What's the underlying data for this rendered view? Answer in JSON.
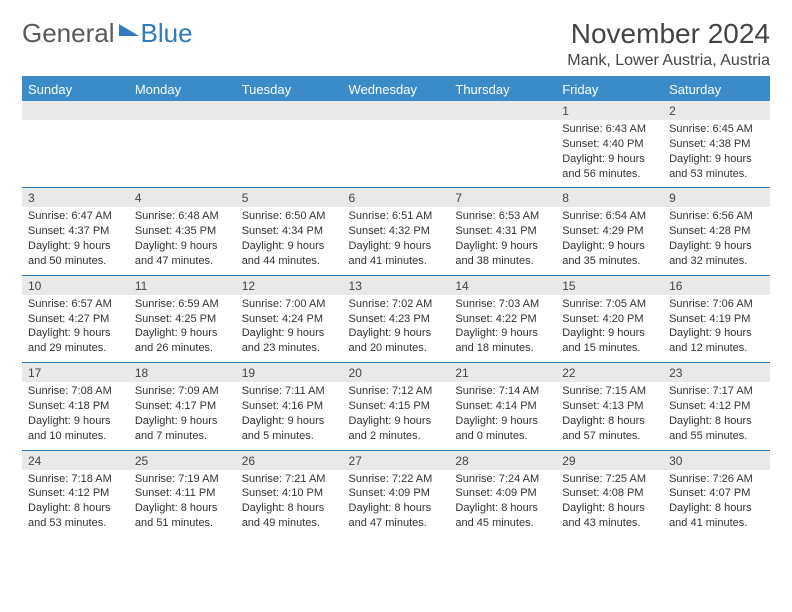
{
  "logo": {
    "part1": "General",
    "part2": "Blue"
  },
  "title": "November 2024",
  "location": "Mank, Lower Austria, Austria",
  "colors": {
    "header_bg": "#3b8bc9",
    "header_text": "#ffffff",
    "date_row_bg": "#e9e9e9",
    "divider": "#2f7bbf",
    "body_text": "#333333"
  },
  "typography": {
    "title_fontsize": 28,
    "location_fontsize": 16,
    "dayhead_fontsize": 13,
    "cell_fontsize": 11
  },
  "days": [
    "Sunday",
    "Monday",
    "Tuesday",
    "Wednesday",
    "Thursday",
    "Friday",
    "Saturday"
  ],
  "weeks": [
    [
      null,
      null,
      null,
      null,
      null,
      {
        "n": "1",
        "sr": "Sunrise: 6:43 AM",
        "ss": "Sunset: 4:40 PM",
        "dl1": "Daylight: 9 hours",
        "dl2": "and 56 minutes."
      },
      {
        "n": "2",
        "sr": "Sunrise: 6:45 AM",
        "ss": "Sunset: 4:38 PM",
        "dl1": "Daylight: 9 hours",
        "dl2": "and 53 minutes."
      }
    ],
    [
      {
        "n": "3",
        "sr": "Sunrise: 6:47 AM",
        "ss": "Sunset: 4:37 PM",
        "dl1": "Daylight: 9 hours",
        "dl2": "and 50 minutes."
      },
      {
        "n": "4",
        "sr": "Sunrise: 6:48 AM",
        "ss": "Sunset: 4:35 PM",
        "dl1": "Daylight: 9 hours",
        "dl2": "and 47 minutes."
      },
      {
        "n": "5",
        "sr": "Sunrise: 6:50 AM",
        "ss": "Sunset: 4:34 PM",
        "dl1": "Daylight: 9 hours",
        "dl2": "and 44 minutes."
      },
      {
        "n": "6",
        "sr": "Sunrise: 6:51 AM",
        "ss": "Sunset: 4:32 PM",
        "dl1": "Daylight: 9 hours",
        "dl2": "and 41 minutes."
      },
      {
        "n": "7",
        "sr": "Sunrise: 6:53 AM",
        "ss": "Sunset: 4:31 PM",
        "dl1": "Daylight: 9 hours",
        "dl2": "and 38 minutes."
      },
      {
        "n": "8",
        "sr": "Sunrise: 6:54 AM",
        "ss": "Sunset: 4:29 PM",
        "dl1": "Daylight: 9 hours",
        "dl2": "and 35 minutes."
      },
      {
        "n": "9",
        "sr": "Sunrise: 6:56 AM",
        "ss": "Sunset: 4:28 PM",
        "dl1": "Daylight: 9 hours",
        "dl2": "and 32 minutes."
      }
    ],
    [
      {
        "n": "10",
        "sr": "Sunrise: 6:57 AM",
        "ss": "Sunset: 4:27 PM",
        "dl1": "Daylight: 9 hours",
        "dl2": "and 29 minutes."
      },
      {
        "n": "11",
        "sr": "Sunrise: 6:59 AM",
        "ss": "Sunset: 4:25 PM",
        "dl1": "Daylight: 9 hours",
        "dl2": "and 26 minutes."
      },
      {
        "n": "12",
        "sr": "Sunrise: 7:00 AM",
        "ss": "Sunset: 4:24 PM",
        "dl1": "Daylight: 9 hours",
        "dl2": "and 23 minutes."
      },
      {
        "n": "13",
        "sr": "Sunrise: 7:02 AM",
        "ss": "Sunset: 4:23 PM",
        "dl1": "Daylight: 9 hours",
        "dl2": "and 20 minutes."
      },
      {
        "n": "14",
        "sr": "Sunrise: 7:03 AM",
        "ss": "Sunset: 4:22 PM",
        "dl1": "Daylight: 9 hours",
        "dl2": "and 18 minutes."
      },
      {
        "n": "15",
        "sr": "Sunrise: 7:05 AM",
        "ss": "Sunset: 4:20 PM",
        "dl1": "Daylight: 9 hours",
        "dl2": "and 15 minutes."
      },
      {
        "n": "16",
        "sr": "Sunrise: 7:06 AM",
        "ss": "Sunset: 4:19 PM",
        "dl1": "Daylight: 9 hours",
        "dl2": "and 12 minutes."
      }
    ],
    [
      {
        "n": "17",
        "sr": "Sunrise: 7:08 AM",
        "ss": "Sunset: 4:18 PM",
        "dl1": "Daylight: 9 hours",
        "dl2": "and 10 minutes."
      },
      {
        "n": "18",
        "sr": "Sunrise: 7:09 AM",
        "ss": "Sunset: 4:17 PM",
        "dl1": "Daylight: 9 hours",
        "dl2": "and 7 minutes."
      },
      {
        "n": "19",
        "sr": "Sunrise: 7:11 AM",
        "ss": "Sunset: 4:16 PM",
        "dl1": "Daylight: 9 hours",
        "dl2": "and 5 minutes."
      },
      {
        "n": "20",
        "sr": "Sunrise: 7:12 AM",
        "ss": "Sunset: 4:15 PM",
        "dl1": "Daylight: 9 hours",
        "dl2": "and 2 minutes."
      },
      {
        "n": "21",
        "sr": "Sunrise: 7:14 AM",
        "ss": "Sunset: 4:14 PM",
        "dl1": "Daylight: 9 hours",
        "dl2": "and 0 minutes."
      },
      {
        "n": "22",
        "sr": "Sunrise: 7:15 AM",
        "ss": "Sunset: 4:13 PM",
        "dl1": "Daylight: 8 hours",
        "dl2": "and 57 minutes."
      },
      {
        "n": "23",
        "sr": "Sunrise: 7:17 AM",
        "ss": "Sunset: 4:12 PM",
        "dl1": "Daylight: 8 hours",
        "dl2": "and 55 minutes."
      }
    ],
    [
      {
        "n": "24",
        "sr": "Sunrise: 7:18 AM",
        "ss": "Sunset: 4:12 PM",
        "dl1": "Daylight: 8 hours",
        "dl2": "and 53 minutes."
      },
      {
        "n": "25",
        "sr": "Sunrise: 7:19 AM",
        "ss": "Sunset: 4:11 PM",
        "dl1": "Daylight: 8 hours",
        "dl2": "and 51 minutes."
      },
      {
        "n": "26",
        "sr": "Sunrise: 7:21 AM",
        "ss": "Sunset: 4:10 PM",
        "dl1": "Daylight: 8 hours",
        "dl2": "and 49 minutes."
      },
      {
        "n": "27",
        "sr": "Sunrise: 7:22 AM",
        "ss": "Sunset: 4:09 PM",
        "dl1": "Daylight: 8 hours",
        "dl2": "and 47 minutes."
      },
      {
        "n": "28",
        "sr": "Sunrise: 7:24 AM",
        "ss": "Sunset: 4:09 PM",
        "dl1": "Daylight: 8 hours",
        "dl2": "and 45 minutes."
      },
      {
        "n": "29",
        "sr": "Sunrise: 7:25 AM",
        "ss": "Sunset: 4:08 PM",
        "dl1": "Daylight: 8 hours",
        "dl2": "and 43 minutes."
      },
      {
        "n": "30",
        "sr": "Sunrise: 7:26 AM",
        "ss": "Sunset: 4:07 PM",
        "dl1": "Daylight: 8 hours",
        "dl2": "and 41 minutes."
      }
    ]
  ]
}
